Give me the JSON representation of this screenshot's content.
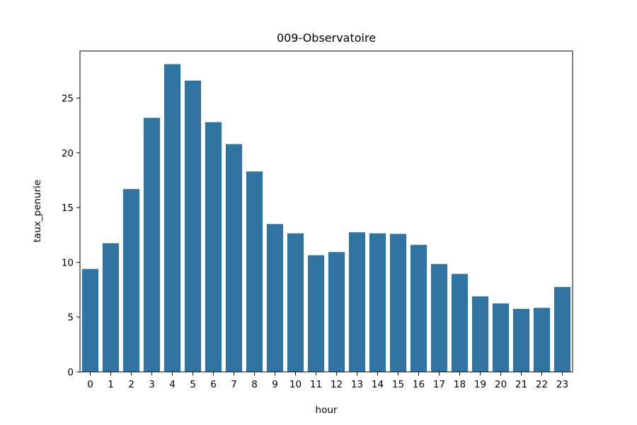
{
  "chart_data": {
    "type": "bar",
    "title": "009-Observatoire",
    "xlabel": "hour",
    "ylabel": "taux_penurie",
    "categories": [
      "0",
      "1",
      "2",
      "3",
      "4",
      "5",
      "6",
      "7",
      "8",
      "9",
      "10",
      "11",
      "12",
      "13",
      "14",
      "15",
      "16",
      "17",
      "18",
      "19",
      "20",
      "21",
      "22",
      "23"
    ],
    "values": [
      9.4,
      11.75,
      16.7,
      23.2,
      28.1,
      26.6,
      22.8,
      20.8,
      18.3,
      13.5,
      12.65,
      10.65,
      10.95,
      12.75,
      12.65,
      12.6,
      11.6,
      9.85,
      8.95,
      6.9,
      6.25,
      5.75,
      5.85,
      7.75
    ],
    "ylim": [
      0,
      29.3
    ],
    "yticks": [
      "0",
      "5",
      "10",
      "15",
      "20",
      "25"
    ],
    "bar_color": "#3274a1",
    "grid": false,
    "legend": "none"
  }
}
